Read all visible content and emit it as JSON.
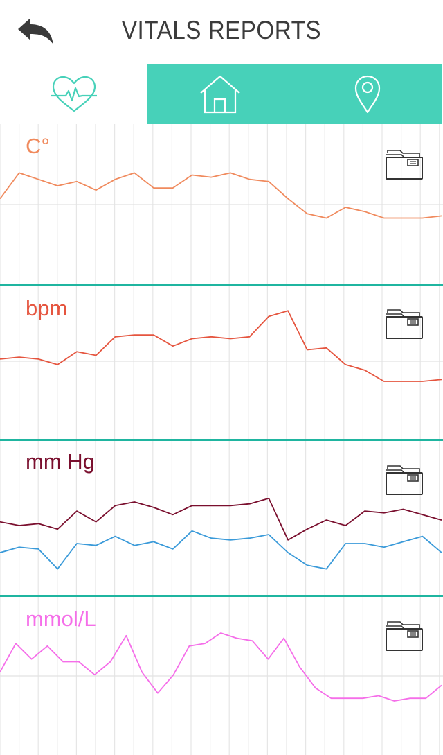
{
  "header": {
    "title": "VITALS REPORTS"
  },
  "tabs": [
    {
      "name": "vitals",
      "icon": "heart-pulse-icon",
      "active": true
    },
    {
      "name": "home",
      "icon": "home-icon",
      "active": false
    },
    {
      "name": "location",
      "icon": "location-pin-icon",
      "active": false
    }
  ],
  "colors": {
    "accent": "#47d1b9",
    "divider": "#1fb5a0",
    "temperature": "#f08a5d",
    "heart_rate": "#e5553f",
    "systolic": "#7a0f2e",
    "diastolic": "#3a9ad9",
    "glucose": "#f56ee9"
  },
  "panels": [
    {
      "id": "temperature",
      "label": "C°",
      "action_icon": "folder-icon",
      "series": [
        {
          "color": "#f08a5d",
          "values": [
            59,
            71,
            68,
            65,
            67,
            63,
            68,
            71,
            64,
            64,
            70,
            69,
            71,
            68,
            67,
            59,
            52,
            50,
            55,
            53,
            50,
            50,
            50,
            51
          ]
        }
      ]
    },
    {
      "id": "heart_rate",
      "label": "bpm",
      "action_icon": "folder-icon",
      "series": [
        {
          "color": "#e5553f",
          "values": [
            50,
            51,
            50,
            47,
            54,
            52,
            62,
            63,
            63,
            57,
            61,
            62,
            61,
            62,
            73,
            76,
            55,
            56,
            47,
            44,
            38,
            38,
            38,
            39
          ]
        }
      ]
    },
    {
      "id": "blood_pressure",
      "label": "mm Hg",
      "action_icon": "folder-icon",
      "series": [
        {
          "color": "#7a0f2e",
          "values": [
            112,
            110,
            111,
            108,
            118,
            112,
            121,
            123,
            120,
            116,
            121,
            121,
            121,
            122,
            125,
            102,
            108,
            113,
            110,
            118,
            117,
            119,
            116,
            113
          ]
        },
        {
          "color": "#3a9ad9",
          "values": [
            95,
            98,
            97,
            86,
            100,
            99,
            104,
            99,
            101,
            97,
            107,
            103,
            102,
            103,
            105,
            95,
            88,
            86,
            100,
            100,
            98,
            101,
            104,
            95
          ]
        }
      ]
    },
    {
      "id": "glucose",
      "label": "mmol/L",
      "action_icon": "folder-icon",
      "series": [
        {
          "color": "#f56ee9",
          "values": [
            5.5,
            6.6,
            6.0,
            6.5,
            5.9,
            5.9,
            5.4,
            5.9,
            6.9,
            5.5,
            4.7,
            5.4,
            6.5,
            6.6,
            7.0,
            6.8,
            6.7,
            6.0,
            6.8,
            5.7,
            4.9,
            4.5,
            4.5,
            4.5,
            4.6,
            4.4,
            4.5,
            4.5,
            5.0
          ]
        }
      ]
    }
  ]
}
